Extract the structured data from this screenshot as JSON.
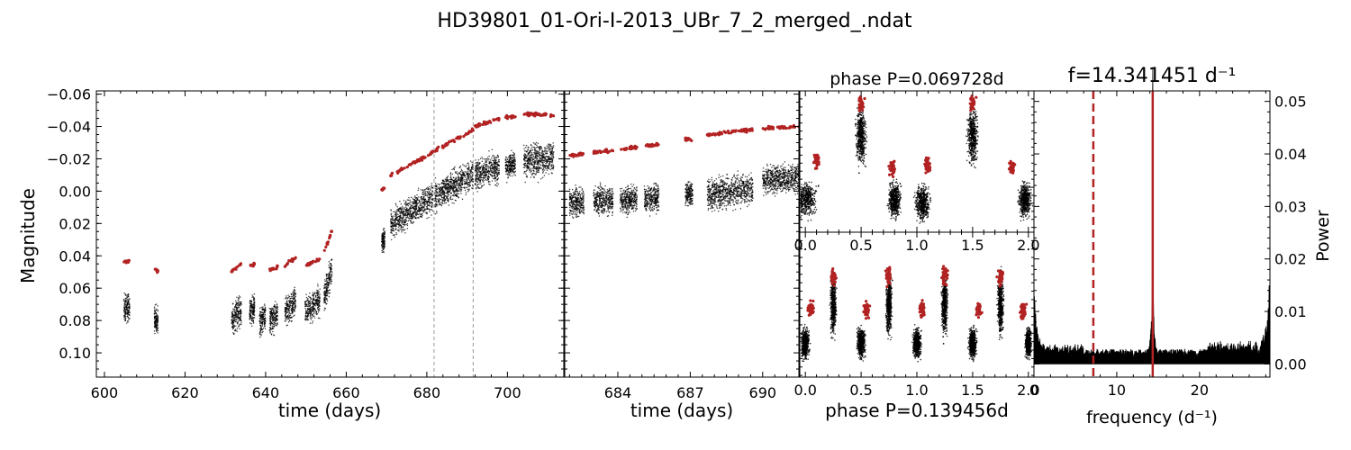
{
  "figure": {
    "title": "HD39801_01-Ori-I-2013_UBr_7_2_merged_.ndat"
  },
  "chart_data": [
    {
      "panel": "light-curve",
      "type": "scatter",
      "xlabel": "time (days)",
      "ylabel": "Magnitude",
      "xlim": [
        598,
        714
      ],
      "ylim": [
        0.115,
        -0.062
      ],
      "y_inverted": true,
      "xticks": [
        600,
        620,
        640,
        660,
        680,
        700
      ],
      "yticks": [
        -0.06,
        -0.04,
        -0.02,
        0.0,
        0.02,
        0.04,
        0.06,
        0.08,
        0.1
      ],
      "ytick_labels": [
        "−0.06",
        "−0.04",
        "−0.02",
        "0.00",
        "0.02",
        "0.04",
        "0.06",
        "0.08",
        "0.10"
      ],
      "vlines": [
        681.8,
        691.5
      ],
      "series": [
        {
          "color": "#000000",
          "marker": "dot",
          "segments": [
            {
              "x": [
                604.8,
                606.3
              ],
              "y": [
                0.072,
                0.072
              ],
              "spread": 0.012
            },
            {
              "x": [
                612.4,
                613.3
              ],
              "y": [
                0.08,
                0.08
              ],
              "spread": 0.012
            },
            {
              "x": [
                631.5,
                634.0
              ],
              "y": [
                0.08,
                0.074
              ],
              "spread": 0.013
            },
            {
              "x": [
                636.0,
                637.3
              ],
              "y": [
                0.074,
                0.072
              ],
              "spread": 0.012
            },
            {
              "x": [
                638.5,
                640.0
              ],
              "y": [
                0.081,
                0.076
              ],
              "spread": 0.013
            },
            {
              "x": [
                641.0,
                643.0
              ],
              "y": [
                0.08,
                0.076
              ],
              "spread": 0.013
            },
            {
              "x": [
                644.8,
                647.5
              ],
              "y": [
                0.075,
                0.068
              ],
              "spread": 0.013
            },
            {
              "x": [
                649.8,
                653.5
              ],
              "y": [
                0.074,
                0.068
              ],
              "spread": 0.013
            },
            {
              "x": [
                654.5,
                656.5
              ],
              "y": [
                0.066,
                0.048
              ],
              "spread": 0.013
            },
            {
              "x": [
                668.8,
                669.6
              ],
              "y": [
                0.032,
                0.03
              ],
              "spread": 0.01
            },
            {
              "x": [
                671.0,
                681.5
              ],
              "y": [
                0.02,
                0.004
              ],
              "spread": 0.013
            },
            {
              "x": [
                682.0,
                691.5
              ],
              "y": [
                0.003,
                -0.01
              ],
              "spread": 0.013
            },
            {
              "x": [
                692.0,
                698.0
              ],
              "y": [
                -0.01,
                -0.015
              ],
              "spread": 0.013
            },
            {
              "x": [
                699.5,
                702.0
              ],
              "y": [
                -0.016,
                -0.016
              ],
              "spread": 0.011
            },
            {
              "x": [
                704.0,
                711.5
              ],
              "y": [
                -0.018,
                -0.02
              ],
              "spread": 0.014
            }
          ]
        },
        {
          "color": "#b22222",
          "marker": "dot",
          "segments": [
            {
              "x": [
                604.8,
                606.3
              ],
              "y": [
                0.044,
                0.043
              ]
            },
            {
              "x": [
                612.4,
                613.3
              ],
              "y": [
                0.047,
                0.05
              ]
            },
            {
              "x": [
                631.5,
                634.0
              ],
              "y": [
                0.05,
                0.045
              ]
            },
            {
              "x": [
                636.0,
                637.3
              ],
              "y": [
                0.046,
                0.045
              ]
            },
            {
              "x": [
                641.0,
                643.0
              ],
              "y": [
                0.049,
                0.047
              ]
            },
            {
              "x": [
                644.8,
                647.5
              ],
              "y": [
                0.046,
                0.041
              ]
            },
            {
              "x": [
                649.8,
                653.5
              ],
              "y": [
                0.046,
                0.042
              ]
            },
            {
              "x": [
                654.5,
                656.5
              ],
              "y": [
                0.038,
                0.024
              ]
            },
            {
              "x": [
                668.8,
                669.6
              ],
              "y": [
                -0.001,
                -0.002
              ]
            },
            {
              "x": [
                671.0,
                681.5
              ],
              "y": [
                -0.01,
                -0.024
              ]
            },
            {
              "x": [
                682.0,
                691.5
              ],
              "y": [
                -0.025,
                -0.038
              ]
            },
            {
              "x": [
                692.0,
                698.0
              ],
              "y": [
                -0.04,
                -0.045
              ]
            },
            {
              "x": [
                699.5,
                702.0
              ],
              "y": [
                -0.046,
                -0.046
              ]
            },
            {
              "x": [
                704.0,
                711.5
              ],
              "y": [
                -0.048,
                -0.047
              ]
            }
          ]
        }
      ]
    },
    {
      "panel": "zoom",
      "type": "scatter",
      "xlabel": "time (days)",
      "xlim": [
        681.8,
        691.5
      ],
      "ylim": [
        0.115,
        -0.062
      ],
      "y_inverted": true,
      "xticks": [
        684,
        687,
        690
      ],
      "series": [
        {
          "color": "#000000",
          "segments": [
            {
              "x": [
                682.0,
                682.6
              ],
              "y": [
                0.007,
                0.007
              ],
              "spread": 0.012
            },
            {
              "x": [
                683.0,
                683.8
              ],
              "y": [
                0.006,
                0.006
              ],
              "spread": 0.012
            },
            {
              "x": [
                684.1,
                684.8
              ],
              "y": [
                0.006,
                0.005
              ],
              "spread": 0.012
            },
            {
              "x": [
                685.1,
                685.7
              ],
              "y": [
                0.005,
                0.004
              ],
              "spread": 0.012
            },
            {
              "x": [
                686.8,
                687.1
              ],
              "y": [
                0.002,
                0.002
              ],
              "spread": 0.01
            },
            {
              "x": [
                687.7,
                689.6
              ],
              "y": [
                0.002,
                -0.001
              ],
              "spread": 0.014
            },
            {
              "x": [
                690.0,
                691.5
              ],
              "y": [
                -0.007,
                -0.008
              ],
              "spread": 0.012
            }
          ]
        },
        {
          "color": "#b22222",
          "segments": [
            {
              "x": [
                682.0,
                682.6
              ],
              "y": [
                -0.022,
                -0.023
              ]
            },
            {
              "x": [
                683.0,
                683.8
              ],
              "y": [
                -0.024,
                -0.025
              ]
            },
            {
              "x": [
                684.1,
                684.8
              ],
              "y": [
                -0.026,
                -0.027
              ]
            },
            {
              "x": [
                685.1,
                685.7
              ],
              "y": [
                -0.028,
                -0.029
              ]
            },
            {
              "x": [
                686.8,
                687.1
              ],
              "y": [
                -0.032,
                -0.032
              ]
            },
            {
              "x": [
                687.7,
                689.6
              ],
              "y": [
                -0.035,
                -0.038
              ]
            },
            {
              "x": [
                690.0,
                691.5
              ],
              "y": [
                -0.039,
                -0.04
              ]
            }
          ]
        }
      ]
    },
    {
      "panel": "phase-1",
      "type": "scatter",
      "title": "phase P=0.069728d",
      "xlim": [
        -0.05,
        2.05
      ],
      "xticks": [
        0.0,
        0.5,
        1.0,
        1.5,
        2.0
      ],
      "xtick_labels": [
        "0.0",
        "0.5",
        "1.0",
        "1.5",
        "2.0"
      ],
      "clusters": [
        {
          "phase": 0.0,
          "y": 0.01,
          "w": 0.22,
          "h": 0.012
        },
        {
          "phase": 0.5,
          "y": -0.03,
          "w": 0.1,
          "h": 0.02
        },
        {
          "phase": 0.8,
          "y": 0.01,
          "w": 0.12,
          "h": 0.012
        },
        {
          "phase": 1.05,
          "y": 0.012,
          "w": 0.15,
          "h": 0.012
        },
        {
          "phase": 1.5,
          "y": -0.03,
          "w": 0.1,
          "h": 0.02
        },
        {
          "phase": 1.97,
          "y": 0.01,
          "w": 0.12,
          "h": 0.012
        }
      ],
      "red_clusters": [
        {
          "phase": 0.1,
          "y": -0.015
        },
        {
          "phase": 0.5,
          "y": -0.05
        },
        {
          "phase": 0.78,
          "y": -0.01
        },
        {
          "phase": 1.1,
          "y": -0.012
        },
        {
          "phase": 1.5,
          "y": -0.05
        },
        {
          "phase": 1.85,
          "y": -0.01
        }
      ]
    },
    {
      "panel": "phase-2",
      "type": "scatter",
      "xlabel": "phase P=0.139456d",
      "xlim": [
        -0.05,
        2.05
      ],
      "xticks": [
        0.0,
        0.5,
        1.0,
        1.5,
        2.0
      ],
      "xtick_labels": [
        "0.0",
        "0.5",
        "1.0",
        "1.5",
        "2.0"
      ],
      "clusters": [
        {
          "phase": 0.0,
          "y": 0.038,
          "w": 0.08,
          "h": 0.01
        },
        {
          "phase": 0.25,
          "y": 0.015,
          "w": 0.06,
          "h": 0.02
        },
        {
          "phase": 0.5,
          "y": 0.038,
          "w": 0.08,
          "h": 0.01
        },
        {
          "phase": 0.75,
          "y": 0.015,
          "w": 0.06,
          "h": 0.02
        },
        {
          "phase": 1.0,
          "y": 0.038,
          "w": 0.08,
          "h": 0.01
        },
        {
          "phase": 1.25,
          "y": 0.015,
          "w": 0.06,
          "h": 0.02
        },
        {
          "phase": 1.5,
          "y": 0.038,
          "w": 0.08,
          "h": 0.01
        },
        {
          "phase": 1.75,
          "y": 0.015,
          "w": 0.06,
          "h": 0.02
        },
        {
          "phase": 2.0,
          "y": 0.038,
          "w": 0.06,
          "h": 0.01
        }
      ],
      "red_clusters": [
        {
          "phase": 0.05,
          "y": 0.018
        },
        {
          "phase": 0.25,
          "y": -0.002
        },
        {
          "phase": 0.55,
          "y": 0.018
        },
        {
          "phase": 0.75,
          "y": -0.002
        },
        {
          "phase": 1.05,
          "y": 0.018
        },
        {
          "phase": 1.25,
          "y": -0.002
        },
        {
          "phase": 1.55,
          "y": 0.018
        },
        {
          "phase": 1.75,
          "y": -0.002
        },
        {
          "phase": 1.95,
          "y": 0.018
        }
      ]
    },
    {
      "panel": "periodogram",
      "type": "line",
      "title": "f=14.341451 d⁻¹",
      "xlabel": "frequency (d⁻¹)",
      "ylabel": "Power",
      "xlim": [
        0,
        28.5
      ],
      "ylim": [
        -0.0025,
        0.052
      ],
      "xticks": [
        0,
        10,
        20
      ],
      "yticks": [
        0.0,
        0.01,
        0.02,
        0.03,
        0.04,
        0.05
      ],
      "ytick_labels": [
        "0.00",
        "0.01",
        "0.02",
        "0.03",
        "0.04",
        "0.05"
      ],
      "peak_frequency": 14.341451,
      "subharmonic_frequency": 7.17,
      "peak_power": 0.051,
      "line_color": "#000000",
      "marker_color": "#b22222"
    }
  ]
}
